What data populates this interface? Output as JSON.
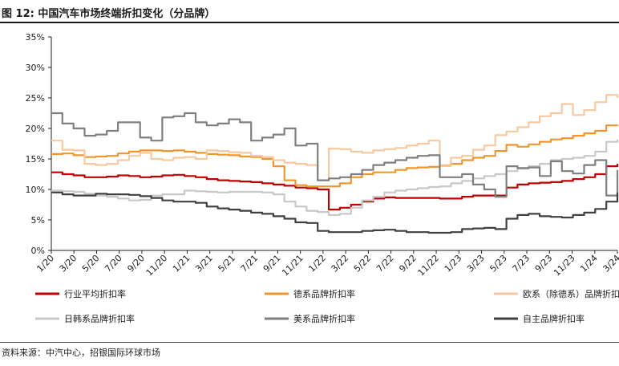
{
  "figure": {
    "title": "图 12: 中国汽车市场终端折扣变化（分品牌）",
    "source": "资料来源：中汽中心，招银国际环球市场"
  },
  "chart_data": {
    "type": "line",
    "y_ticks": [
      "0%",
      "5%",
      "10%",
      "15%",
      "20%",
      "25%",
      "30%",
      "35%"
    ],
    "ylim": [
      0,
      35
    ],
    "x_ticks": [
      "1/20",
      "3/20",
      "5/20",
      "7/20",
      "9/20",
      "11/20",
      "1/21",
      "3/21",
      "5/21",
      "7/21",
      "9/21",
      "11/21",
      "1/22",
      "3/22",
      "5/22",
      "7/22",
      "9/22",
      "11/22",
      "1/23",
      "3/23",
      "5/23",
      "7/23",
      "9/23",
      "11/23",
      "1/24",
      "3/24"
    ],
    "x_range": [
      0,
      51
    ],
    "grid": false,
    "legend_placement": "bottom",
    "series": [
      {
        "name": "行业平均折扣率",
        "color": "#c00000",
        "values": [
          12.8,
          12.5,
          12.3,
          12.0,
          12.0,
          12.1,
          12.3,
          12.2,
          12.0,
          12.1,
          12.3,
          12.4,
          12.2,
          12.0,
          11.7,
          11.5,
          11.4,
          11.3,
          11.2,
          11.0,
          10.8,
          10.6,
          10.3,
          10.2,
          10.0,
          6.7,
          7.0,
          7.5,
          8.0,
          8.5,
          8.7,
          8.6,
          8.6,
          8.6,
          8.6,
          8.5,
          8.5,
          8.8,
          9.0,
          9.0,
          9.0,
          10.3,
          10.8,
          11.0,
          11.1,
          11.2,
          11.4,
          11.7,
          12.0,
          12.5,
          13.8,
          14.2
        ]
      },
      {
        "name": "德系品牌折扣率",
        "color": "#f0962d",
        "values": [
          15.8,
          15.9,
          15.6,
          15.3,
          15.4,
          15.5,
          15.9,
          16.2,
          16.4,
          16.4,
          16.3,
          16.4,
          16.2,
          16.0,
          15.8,
          15.7,
          15.6,
          15.4,
          15.3,
          15.0,
          13.8,
          11.5,
          10.7,
          10.5,
          10.5,
          10.5,
          11.0,
          12.0,
          12.5,
          12.8,
          12.8,
          13.2,
          13.5,
          13.6,
          13.7,
          13.9,
          14.2,
          14.8,
          15.2,
          15.5,
          16.3,
          17.3,
          17.0,
          17.4,
          17.8,
          18.2,
          18.4,
          18.8,
          19.2,
          19.6,
          20.5,
          20.6
        ]
      },
      {
        "name": "欧系（除德系）品牌折扣率",
        "color": "#f8c9a0",
        "values": [
          18.0,
          16.5,
          16.4,
          14.2,
          14.0,
          14.2,
          14.8,
          15.5,
          16.0,
          15.0,
          14.8,
          15.2,
          15.3,
          15.0,
          16.4,
          16.3,
          16.1,
          16.0,
          15.5,
          15.3,
          14.8,
          14.4,
          14.2,
          14.0,
          11.5,
          16.7,
          16.6,
          16.2,
          16.0,
          16.4,
          16.6,
          16.8,
          17.2,
          17.5,
          18.0,
          14.0,
          15.2,
          15.5,
          16.5,
          17.2,
          18.9,
          19.5,
          20.2,
          21.0,
          22.0,
          22.5,
          24.0,
          22.2,
          23.0,
          24.3,
          25.5,
          25.0
        ]
      },
      {
        "name": "日韩系品牌折扣率",
        "color": "#c8c8c8",
        "values": [
          9.8,
          9.7,
          9.6,
          9.3,
          9.0,
          8.8,
          8.5,
          8.2,
          8.3,
          9.0,
          9.2,
          9.2,
          9.8,
          9.7,
          9.6,
          9.5,
          9.6,
          9.6,
          9.6,
          9.5,
          9.2,
          8.0,
          7.2,
          6.5,
          6.3,
          5.8,
          6.0,
          7.0,
          8.2,
          8.8,
          9.5,
          9.8,
          10.0,
          10.2,
          10.4,
          10.5,
          11.0,
          11.4,
          11.8,
          12.2,
          12.5,
          13.0,
          13.4,
          13.8,
          14.2,
          14.8,
          15.0,
          15.2,
          15.5,
          16.2,
          17.8,
          18.2
        ]
      },
      {
        "name": "美系品牌折扣率",
        "color": "#7f7f7f",
        "values": [
          22.5,
          20.8,
          20.0,
          18.8,
          19.0,
          19.6,
          21.0,
          21.0,
          18.5,
          18.0,
          21.8,
          22.0,
          22.5,
          21.0,
          20.5,
          20.8,
          21.5,
          21.0,
          18.0,
          18.5,
          19.0,
          20.0,
          17.2,
          17.5,
          11.5,
          11.8,
          12.0,
          12.5,
          13.2,
          14.0,
          14.4,
          14.8,
          15.2,
          15.5,
          15.6,
          12.0,
          12.0,
          12.5,
          10.8,
          10.0,
          8.8,
          13.8,
          13.5,
          13.6,
          12.2,
          14.6,
          13.0,
          12.6,
          14.0,
          14.8,
          9.0,
          13.2
        ]
      },
      {
        "name": "自主品牌折扣率",
        "color": "#404040",
        "values": [
          9.5,
          9.2,
          9.0,
          9.0,
          9.3,
          9.2,
          9.2,
          9.1,
          8.9,
          8.6,
          8.2,
          8.0,
          8.0,
          7.8,
          7.2,
          6.9,
          6.7,
          6.5,
          6.2,
          6.0,
          5.6,
          5.2,
          4.6,
          4.5,
          3.2,
          3.0,
          3.0,
          3.0,
          3.2,
          3.3,
          3.4,
          3.2,
          3.0,
          3.0,
          2.9,
          2.9,
          3.0,
          3.5,
          3.6,
          3.7,
          3.5,
          5.2,
          5.8,
          6.0,
          5.6,
          5.5,
          5.4,
          5.8,
          6.2,
          6.8,
          8.0,
          9.5
        ]
      }
    ]
  }
}
